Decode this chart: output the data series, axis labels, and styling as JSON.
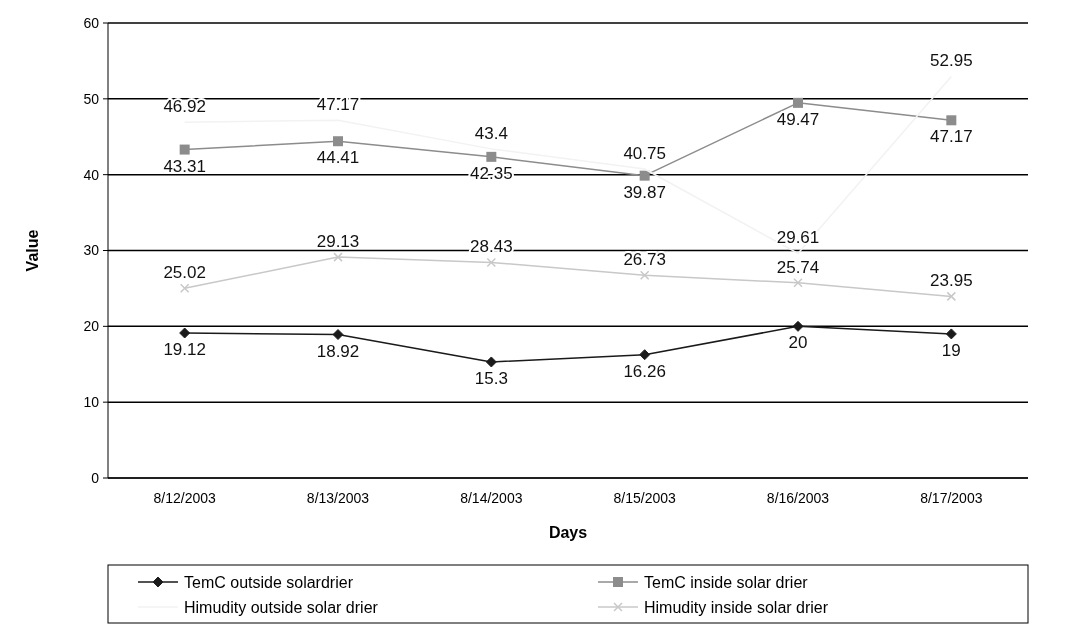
{
  "chart_data": {
    "type": "line",
    "xlabel": "Days",
    "ylabel": "Value",
    "categories": [
      "8/12/2003",
      "8/13/2003",
      "8/14/2003",
      "8/15/2003",
      "8/16/2003",
      "8/17/2003"
    ],
    "series": [
      {
        "name": "TemC outside solardrier",
        "color": "#1a1a1a",
        "marker": "diamond",
        "values": [
          19.12,
          18.92,
          15.3,
          16.26,
          20,
          19
        ]
      },
      {
        "name": "TemC inside solar drier",
        "color": "#8c8c8c",
        "marker": "square",
        "values": [
          43.31,
          44.41,
          42.35,
          39.87,
          49.47,
          47.17
        ]
      },
      {
        "name": "Himudity outside solar drier",
        "color": "#f2f2f2",
        "marker": "none",
        "values": [
          46.92,
          47.17,
          43.4,
          40.75,
          29.61,
          52.95
        ]
      },
      {
        "name": "Himudity inside solar drier",
        "color": "#c8c8c8",
        "marker": "cross",
        "values": [
          25.02,
          29.13,
          28.43,
          26.73,
          25.74,
          23.95
        ]
      }
    ],
    "ylim": [
      0,
      60
    ],
    "yticks": [
      0,
      10,
      20,
      30,
      40,
      50,
      60
    ],
    "grid": "y",
    "legend": "bottom",
    "data_labels": true
  }
}
